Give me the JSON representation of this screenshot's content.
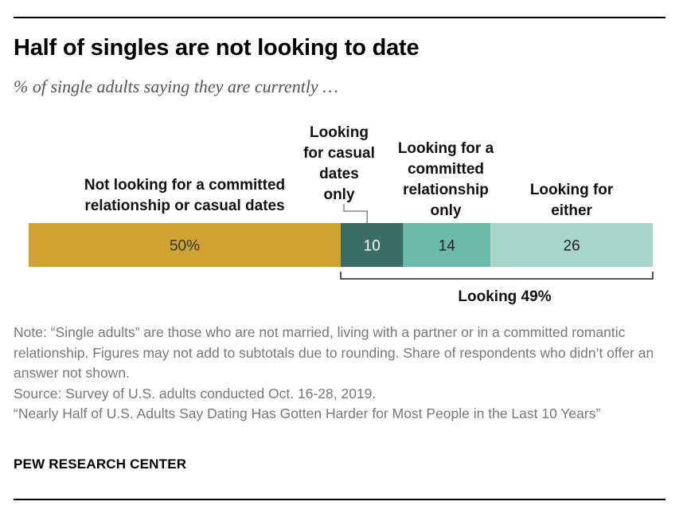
{
  "title": "Half of singles are not looking to date",
  "subtitle": "% of single adults saying they are currently …",
  "chart_data": {
    "type": "bar",
    "orientation": "horizontal-stacked",
    "xlim": [
      0,
      100
    ],
    "segments": [
      {
        "label_lines": [
          "Not looking for a committed",
          "relationship or casual dates"
        ],
        "value": 50,
        "value_label": "50%",
        "color": "#cfa332",
        "text_color": "#333333"
      },
      {
        "label_lines": [
          "Looking",
          "for casual",
          "dates",
          "only"
        ],
        "value": 10,
        "value_label": "10",
        "color": "#3b6e63",
        "text_color": "#ffffff"
      },
      {
        "label_lines": [
          "Looking for a",
          "committed",
          "relationship",
          "only"
        ],
        "value": 14,
        "value_label": "14",
        "color": "#6cbaa8",
        "text_color": "#222222"
      },
      {
        "label_lines": [
          "Looking for",
          "either"
        ],
        "value": 26,
        "value_label": "26",
        "color": "#a9d6cb",
        "text_color": "#222222"
      }
    ],
    "bracket": {
      "label": "Looking 49%",
      "value": 49
    }
  },
  "notes": [
    "Note: “Single adults” are those who are not married, living with a partner or in a committed romantic relationship. Figures may not add to subtotals due to rounding. Share of respondents who didn’t offer an answer not shown.",
    "Source: Survey of U.S. adults conducted Oct. 16-28, 2019.",
    "“Nearly Half of U.S. Adults Say Dating Has Gotten Harder for Most People in the Last 10 Years”"
  ],
  "brand": "PEW RESEARCH CENTER"
}
